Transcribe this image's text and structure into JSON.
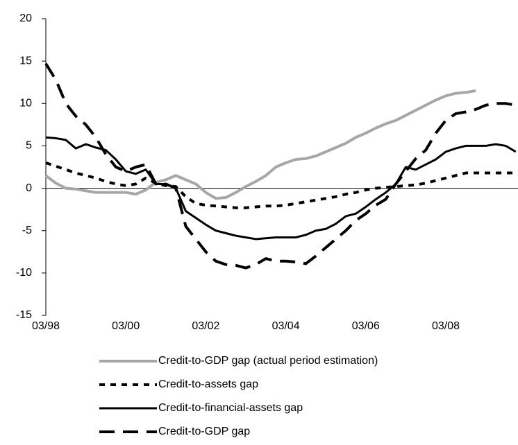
{
  "chart_data": {
    "type": "line",
    "categories": [
      "03/98",
      null,
      null,
      null,
      null,
      null,
      null,
      null,
      "03/00",
      null,
      null,
      null,
      null,
      null,
      null,
      null,
      "03/02",
      null,
      null,
      null,
      null,
      null,
      null,
      null,
      "03/04",
      null,
      null,
      null,
      null,
      null,
      null,
      null,
      "03/06",
      null,
      null,
      null,
      null,
      null,
      null,
      null,
      "03/08",
      null,
      null,
      null,
      null,
      null,
      null,
      null
    ],
    "ylim": [
      -15,
      20
    ],
    "yticks": [
      -15,
      -10,
      -5,
      0,
      5,
      10,
      15,
      20
    ],
    "series": [
      {
        "name": "Credit-to-GDP gap (actual period estimation)",
        "color": "#a6a6a6",
        "dash": "solid",
        "width": 4,
        "values": [
          1.5,
          0.6,
          0,
          -0.1,
          -0.3,
          -0.5,
          -0.5,
          -0.5,
          -0.5,
          -0.7,
          -0.2,
          0.7,
          1,
          1.5,
          1,
          0.5,
          -0.5,
          -1.2,
          -1.1,
          -0.5,
          0.2,
          0.8,
          1.5,
          2.5,
          3,
          3.4,
          3.5,
          3.8,
          4.3,
          4.8,
          5.3,
          6,
          6.5,
          7.1,
          7.6,
          8,
          8.6,
          9.2,
          9.8,
          10.4,
          10.9,
          11.2,
          11.3,
          11.5,
          null,
          null,
          null,
          null
        ]
      },
      {
        "name": "Credit-to-assets gap",
        "color": "#000000",
        "dash": "dotted",
        "width": 4,
        "values": [
          3,
          2.6,
          2.2,
          1.8,
          1.5,
          1.2,
          0.8,
          0.5,
          0.3,
          0.5,
          1.2,
          0.6,
          0.3,
          0.2,
          -1,
          -1.8,
          -2,
          -2.1,
          -2.2,
          -2.3,
          -2.3,
          -2.2,
          -2.1,
          -2.1,
          -2,
          -1.8,
          -1.6,
          -1.4,
          -1.2,
          -1,
          -0.7,
          -0.5,
          -0.2,
          0,
          0.1,
          0.2,
          0.3,
          0.4,
          0.6,
          0.9,
          1.2,
          1.5,
          1.8,
          1.8,
          1.8,
          1.8,
          1.8,
          1.8
        ]
      },
      {
        "name": "Credit-to-financial-assets gap",
        "color": "#000000",
        "dash": "solid",
        "width": 3,
        "values": [
          6,
          5.9,
          5.7,
          4.7,
          5.2,
          4.8,
          4.5,
          3.4,
          2,
          1.7,
          2.2,
          0.5,
          0.5,
          0,
          -2.7,
          -3.5,
          -4.3,
          -5,
          -5.3,
          -5.6,
          -5.8,
          -6,
          -5.9,
          -5.8,
          -5.8,
          -5.8,
          -5.5,
          -5,
          -4.8,
          -4.2,
          -3.3,
          -3,
          -2.2,
          -1.3,
          -0.5,
          0.5,
          2.5,
          2.2,
          2.8,
          3.4,
          4.3,
          4.7,
          5,
          5,
          5,
          5.2,
          5,
          4.3
        ]
      },
      {
        "name": "Credit-to-GDP gap",
        "color": "#000000",
        "dash": "dashed",
        "width": 4,
        "values": [
          14.7,
          12.8,
          10,
          8.5,
          7.5,
          6,
          4,
          2.5,
          2,
          2.5,
          2.8,
          0.5,
          0.5,
          0,
          -4.5,
          -6,
          -7.5,
          -8.6,
          -9,
          -9.1,
          -9.4,
          -9,
          -8.3,
          -8.6,
          -8.6,
          -8.7,
          -8.9,
          -8,
          -7,
          -6,
          -5,
          -3.8,
          -3,
          -2,
          -1.3,
          0.5,
          2,
          3.5,
          4.5,
          6.5,
          8,
          8.8,
          9,
          9.3,
          9.8,
          10,
          10,
          9.8
        ]
      }
    ]
  }
}
